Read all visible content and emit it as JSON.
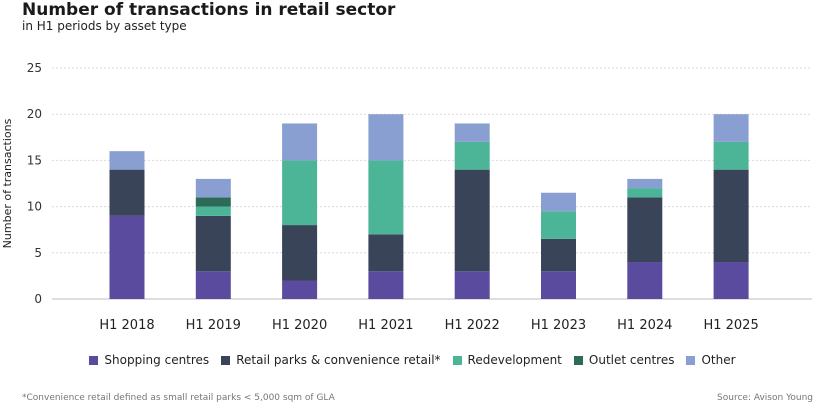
{
  "chart_data": {
    "type": "bar",
    "stacked": true,
    "title": "Number of transactions in retail sector",
    "subtitle": "in H1 periods by asset type",
    "ylabel": "Number of transactions",
    "xlabel": "",
    "ylim": [
      0,
      25
    ],
    "yticks": [
      0,
      5,
      10,
      15,
      20,
      25
    ],
    "grid": true,
    "legend_position": "bottom",
    "categories": [
      "H1 2018",
      "H1 2019",
      "H1 2020",
      "H1 2021",
      "H1 2022",
      "H1 2023",
      "H1 2024",
      "H1 2025"
    ],
    "series": [
      {
        "name": "Shopping centres",
        "color": "#5b4b9e",
        "values": [
          9,
          3,
          2,
          3,
          3,
          3,
          4,
          4
        ]
      },
      {
        "name": "Retail parks & convenience retail*",
        "color": "#3a4459",
        "values": [
          5,
          6,
          6,
          4,
          11,
          3.5,
          7,
          10
        ]
      },
      {
        "name": "Redevelopment",
        "color": "#4db597",
        "values": [
          0,
          1,
          7,
          8,
          3,
          3,
          1,
          3
        ]
      },
      {
        "name": "Outlet centres",
        "color": "#2d6b58",
        "values": [
          0,
          1,
          0,
          0,
          0,
          0,
          0,
          0
        ]
      },
      {
        "name": "Other",
        "color": "#8a9fd1",
        "values": [
          2,
          2,
          4,
          5,
          2,
          2,
          1,
          3
        ]
      }
    ]
  },
  "footnote": "*Convenience retail defined as small retail parks < 5,000 sqm of GLA",
  "source": "Source: Avison Young"
}
